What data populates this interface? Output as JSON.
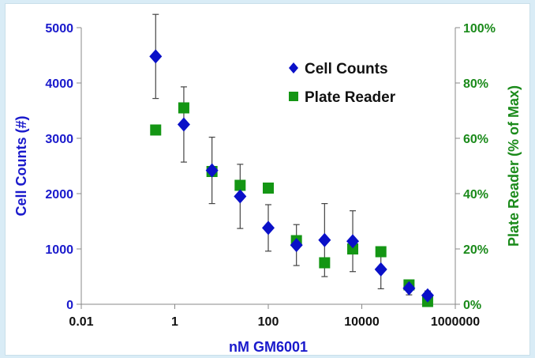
{
  "chart_data": {
    "type": "scatter",
    "xlabel": "nM GM6001",
    "ylabel": "Cell Counts (#)",
    "y2label": "Plate Reader (% of Max)",
    "x_scale": "log",
    "xlim": [
      0.01,
      1000000
    ],
    "ylim": [
      0,
      5000
    ],
    "y2lim": [
      0,
      100
    ],
    "x_ticks": [
      "0.01",
      "1",
      "100",
      "10000",
      "1000000"
    ],
    "y_ticks": [
      "0",
      "1000",
      "2000",
      "3000",
      "4000",
      "5000"
    ],
    "y2_ticks": [
      "0%",
      "20%",
      "40%",
      "60%",
      "80%",
      "100%"
    ],
    "legend_position": "top-right",
    "grid": false,
    "colors": {
      "cell_counts": "#0a10c8",
      "plate_reader": "#149614",
      "left_axis": "#1a1acc",
      "right_axis": "#1a8a1a",
      "axis_line": "#888888"
    },
    "series": [
      {
        "name": "Cell Counts",
        "axis": "left",
        "marker": "diamond",
        "x": [
          0.39,
          1.56,
          6.25,
          25,
          100,
          400,
          1600,
          6400,
          25600,
          102400,
          256000
        ],
        "y": [
          4480,
          3250,
          2420,
          1950,
          1380,
          1070,
          1160,
          1140,
          630,
          290,
          160
        ],
        "err": [
          760,
          680,
          600,
          580,
          420,
          370,
          660,
          550,
          350,
          120,
          80
        ]
      },
      {
        "name": "Plate Reader",
        "axis": "right",
        "marker": "square",
        "x": [
          0.39,
          1.56,
          6.25,
          25,
          100,
          400,
          1600,
          6400,
          25600,
          102400,
          256000
        ],
        "y": [
          63,
          71,
          48,
          43,
          42,
          23,
          15,
          20,
          19,
          7,
          1
        ]
      }
    ]
  }
}
